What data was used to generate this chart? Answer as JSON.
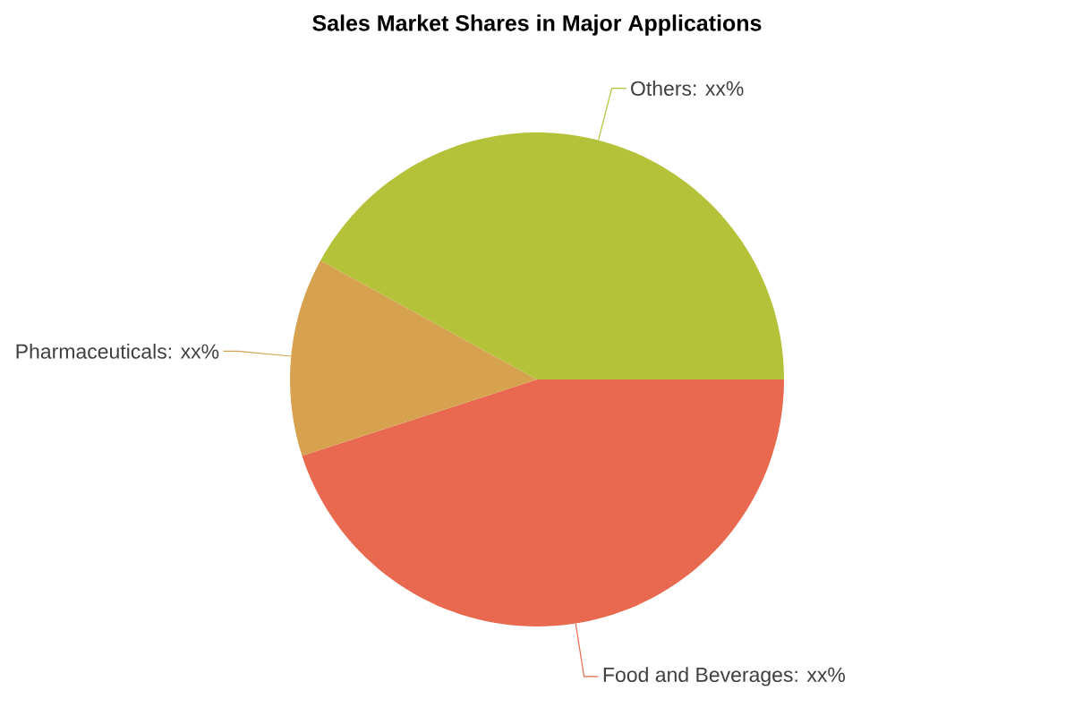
{
  "chart_data": {
    "type": "pie",
    "title": "Sales Market Shares in Major Applications",
    "categories": [
      "Food and Beverages",
      "Pharmaceuticals",
      "Others"
    ],
    "values": [
      45,
      13,
      42
    ],
    "colors": [
      "#e8694f",
      "#d6a24f",
      "#b4c23a"
    ],
    "value_labels": [
      ": xx%",
      ": xx%",
      ": xx%"
    ]
  }
}
